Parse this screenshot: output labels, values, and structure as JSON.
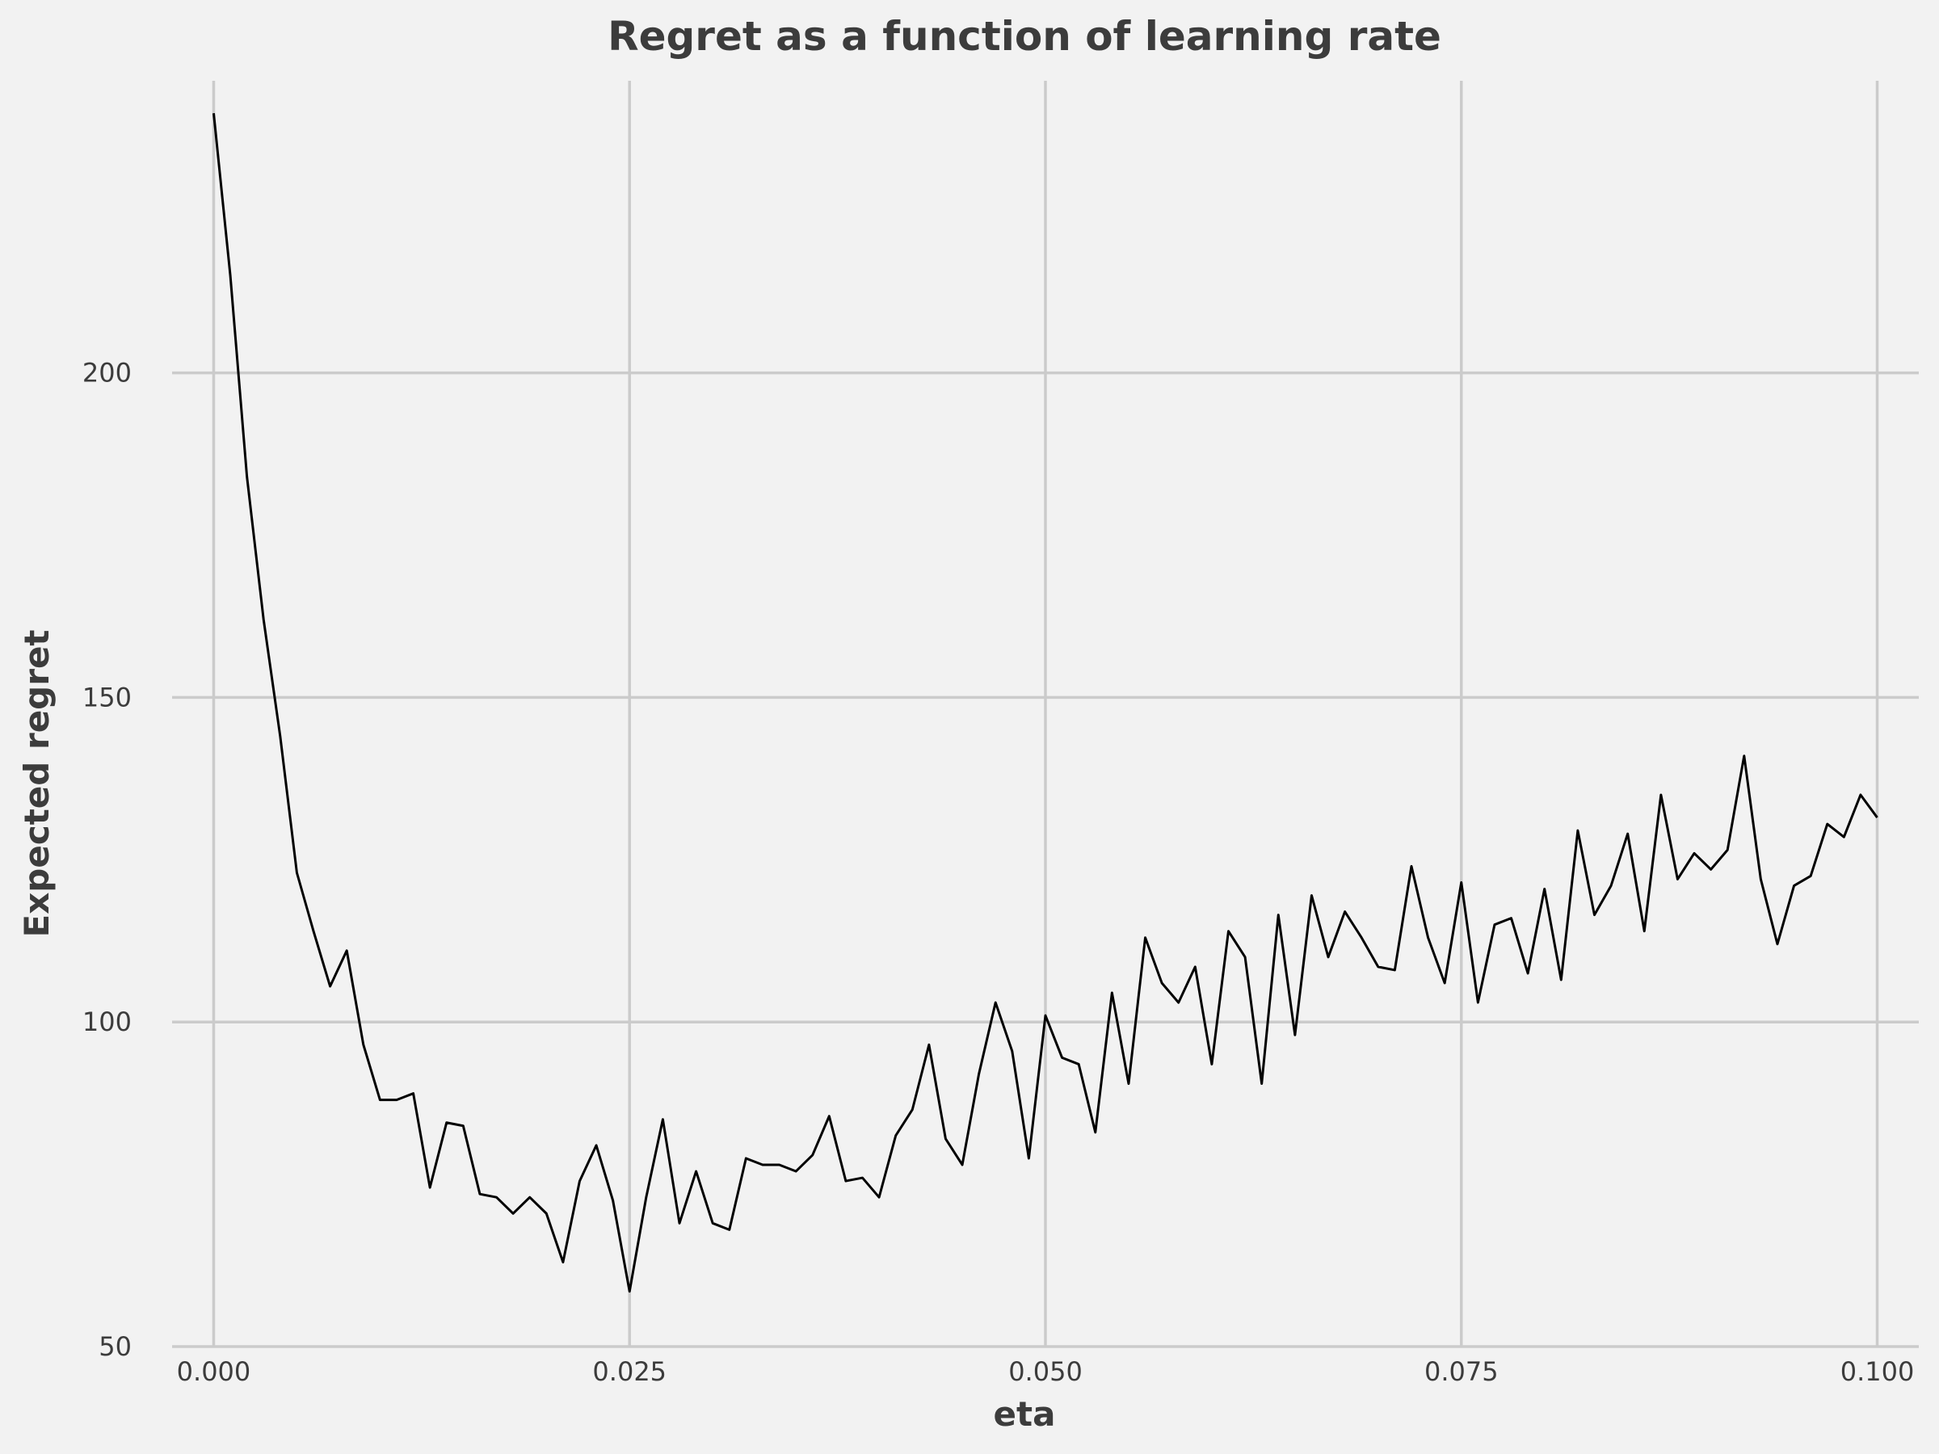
{
  "chart_data": {
    "type": "line",
    "title": "Regret as a function of learning rate",
    "xlabel": "eta",
    "ylabel": "Expected regret",
    "xlim": [
      -0.0025,
      0.1025
    ],
    "ylim": [
      50,
      245
    ],
    "xticks": [
      "0.000",
      "0.025",
      "0.050",
      "0.075",
      "0.100"
    ],
    "yticks": [
      "50",
      "100",
      "150",
      "200"
    ],
    "grid": true,
    "line_color": "#000000",
    "background": "#f2f2f2",
    "series": [
      {
        "x": [
          0.0,
          0.001,
          0.002,
          0.003,
          0.004,
          0.005,
          0.006,
          0.007,
          0.008,
          0.009,
          0.01,
          0.011,
          0.012,
          0.013,
          0.014,
          0.015,
          0.016,
          0.017,
          0.018,
          0.019,
          0.02,
          0.021,
          0.022,
          0.023,
          0.024,
          0.025,
          0.026,
          0.027,
          0.028,
          0.029,
          0.03,
          0.031,
          0.032,
          0.033,
          0.034,
          0.035,
          0.036,
          0.037,
          0.038,
          0.039,
          0.04,
          0.041,
          0.042,
          0.043,
          0.044,
          0.045,
          0.046,
          0.047,
          0.048,
          0.049,
          0.05,
          0.051,
          0.052,
          0.053,
          0.054,
          0.055,
          0.056,
          0.057,
          0.058,
          0.059,
          0.06,
          0.061,
          0.062,
          0.063,
          0.064,
          0.065,
          0.066,
          0.067,
          0.068,
          0.069,
          0.07,
          0.071,
          0.072,
          0.073,
          0.074,
          0.075,
          0.076,
          0.077,
          0.078,
          0.079,
          0.08,
          0.081,
          0.082,
          0.083,
          0.084,
          0.085,
          0.086,
          0.087,
          0.088,
          0.089,
          0.09,
          0.091,
          0.092,
          0.093,
          0.094,
          0.095,
          0.096,
          0.097,
          0.098,
          0.099,
          0.1
        ],
        "values": [
          240,
          215,
          184,
          162,
          144,
          123,
          114,
          105.5,
          111,
          96.5,
          88,
          88,
          89,
          74.5,
          84.5,
          84,
          73.5,
          73,
          70.5,
          73,
          70.5,
          63,
          75.5,
          81,
          72.5,
          58.5,
          73,
          85,
          69,
          77,
          69,
          68,
          79,
          78,
          78,
          77,
          79.5,
          85.5,
          75.5,
          76,
          73,
          82.5,
          86.5,
          96.5,
          82,
          78,
          92,
          103,
          95.5,
          79,
          101,
          94.5,
          93.5,
          83,
          104.5,
          90.5,
          113,
          106,
          103,
          108.5,
          93.5,
          114,
          110,
          90.5,
          116.5,
          98,
          119.5,
          110,
          117,
          113,
          108.5,
          108,
          124,
          113,
          106,
          121.5,
          103,
          115,
          116,
          107.5,
          120.5,
          106.5,
          129.5,
          116.5,
          121,
          129,
          114,
          135,
          122,
          126,
          123.5,
          126.5,
          141,
          122,
          112,
          121,
          122.5,
          130.5,
          128.5,
          135,
          131.5
        ]
      }
    ]
  }
}
